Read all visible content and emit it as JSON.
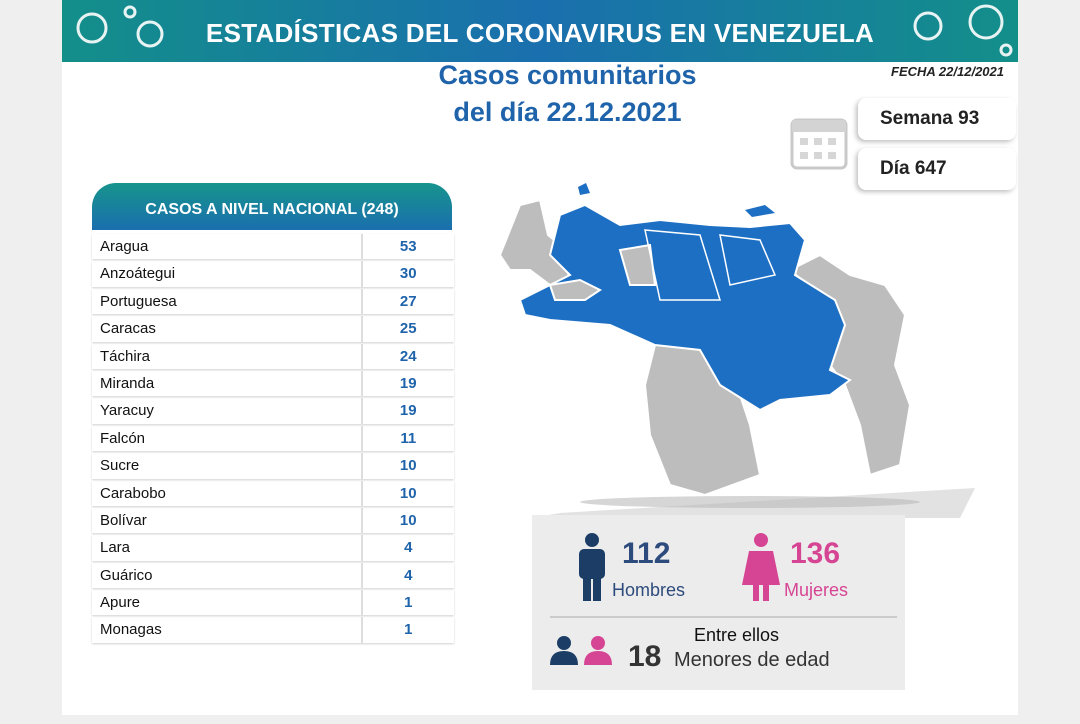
{
  "header": {
    "title": "ESTADÍSTICAS DEL CORONAVIRUS EN VENEZUELA",
    "date": "FECHA 22/12/2021"
  },
  "subtitle": [
    "Casos comunitarios",
    "del día 22.12.2021"
  ],
  "week": "Semana 93",
  "day": "Día 647",
  "table": {
    "title": "CASOS A NIVEL NACIONAL",
    "total": "(248)",
    "rows": [
      [
        "Aragua",
        53
      ],
      [
        "Anzoátegui",
        30
      ],
      [
        "Portuguesa",
        27
      ],
      [
        "Caracas",
        25
      ],
      [
        "Táchira",
        24
      ],
      [
        "Miranda",
        19
      ],
      [
        "Yaracuy",
        19
      ],
      [
        "Falcón",
        11
      ],
      [
        "Sucre",
        10
      ],
      [
        "Carabobo",
        10
      ],
      [
        "Bolívar",
        10
      ],
      [
        "Lara",
        4
      ],
      [
        "Guárico",
        4
      ],
      [
        "Apure",
        1
      ],
      [
        "Monagas",
        1
      ]
    ]
  },
  "gender": {
    "men": {
      "value": 112,
      "label": "Hombres"
    },
    "women": {
      "value": 136,
      "label": "Mujeres"
    },
    "minors_intro": "Entre ellos",
    "minors": {
      "value": 18,
      "label": "Menores de edad"
    }
  }
}
